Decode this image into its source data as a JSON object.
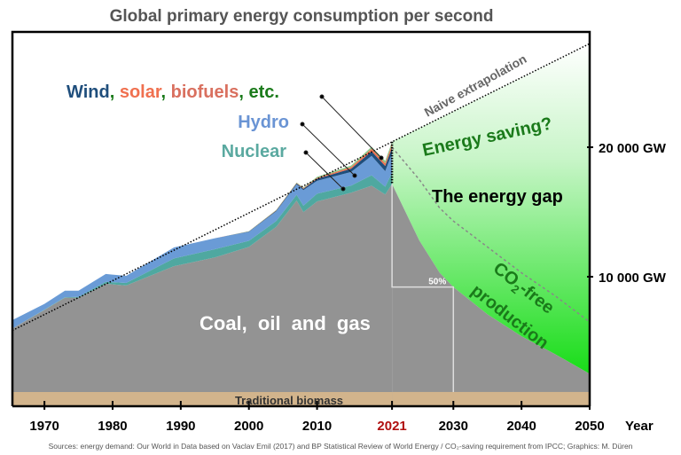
{
  "chart_data": {
    "type": "area",
    "title": "Global primary energy consumption per second",
    "xlabel": "Year",
    "ylabel": "",
    "xlim": [
      1965.3,
      2050
    ],
    "ylim": [
      0,
      28800
    ],
    "grid": false,
    "x_ticks": [
      1970,
      1980,
      1990,
      2000,
      2010,
      2021,
      2030,
      2040,
      2050
    ],
    "highlight_tick": 2021,
    "y_ticks": [
      {
        "value": 10000,
        "label": "10 000 GW"
      },
      {
        "value": 20000,
        "label": "20 000 GW"
      }
    ],
    "years": [
      1966,
      1970,
      1973,
      1975,
      1979,
      1982,
      1989,
      1995,
      2000,
      2004,
      2007,
      2008,
      2010,
      2015,
      2018,
      2020,
      2021
    ],
    "series": [
      {
        "name": "Traditional biomass",
        "color": "#d2b48c",
        "values": [
          1100,
          1100,
          1100,
          1100,
          1100,
          1100,
          1100,
          1100,
          1100,
          1100,
          1100,
          1100,
          1100,
          1100,
          1100,
          1100,
          1100
        ]
      },
      {
        "name": "Coal, oil and gas",
        "color": "#939393",
        "values": [
          4900,
          6330,
          7280,
          7280,
          8360,
          8220,
          9710,
          10390,
          11200,
          12750,
          14780,
          13890,
          14710,
          15390,
          15930,
          15250,
          16060
        ]
      },
      {
        "name": "Nuclear",
        "color": "#4fa8a0",
        "values": [
          0,
          25,
          40,
          60,
          150,
          200,
          600,
          630,
          470,
          450,
          450,
          500,
          600,
          550,
          800,
          600,
          850
        ]
      },
      {
        "name": "Hydro",
        "color": "#6a9bd6",
        "values": [
          650,
          450,
          500,
          480,
          600,
          550,
          850,
          850,
          700,
          750,
          800,
          1200,
          1000,
          1050,
          1500,
          1200,
          1500
        ]
      },
      {
        "name": "Wind",
        "color": "#1f4e7c",
        "values": [
          0,
          0,
          0,
          0,
          0,
          0,
          0,
          0,
          25,
          50,
          75,
          100,
          150,
          250,
          350,
          400,
          450
        ]
      },
      {
        "name": "solar",
        "color": "#f0704f",
        "values": [
          0,
          0,
          0,
          0,
          0,
          0,
          0,
          0,
          10,
          25,
          40,
          50,
          75,
          125,
          200,
          200,
          250
        ]
      },
      {
        "name": "biofuels, etc.",
        "color": "#8fc98a",
        "values": [
          0,
          0,
          0,
          0,
          0,
          0,
          0,
          0,
          15,
          25,
          35,
          50,
          75,
          125,
          150,
          200,
          200
        ]
      }
    ],
    "projection": {
      "years": [
        2021,
        2025,
        2028,
        2030,
        2035,
        2040,
        2045,
        2050
      ],
      "remaining_fossil_incl_biomass": [
        17160,
        12800,
        10300,
        9200,
        7100,
        5400,
        4000,
        2500
      ],
      "dashed_line": [
        20000,
        17500,
        15300,
        14300,
        12300,
        10300,
        8500,
        6500
      ]
    },
    "naive_extrapolation": {
      "years": [
        1965.3,
        2050
      ],
      "values": [
        5850,
        28000
      ]
    },
    "halving_marker": {
      "from_year": 2021,
      "to_year": 2030,
      "level": 9200,
      "label": "50%"
    },
    "annotations": {
      "coal": "Coal, oil and gas",
      "biomass": "Traditional biomass",
      "nuclear": "Nuclear",
      "hydro": "Hydro",
      "wind": "Wind",
      "solar": "solar",
      "biofuels": "biofuels",
      "etc": "etc.",
      "comma": ",",
      "naive": "Naive extrapolation",
      "saving": "Energy saving?",
      "gap": "The energy gap",
      "co2_prefix": "CO",
      "co2_sub": "2",
      "co2_suffix": "-free",
      "production": "production"
    },
    "colors": {
      "title": "#555555",
      "green_text": "#1a7a1a",
      "green_fill": "#22dd22",
      "tick_2021": "#b01010",
      "wind_label": "#1f4e7c",
      "solar_label": "#f0704f",
      "biofuels_label": "#d9705f",
      "etc_label": "#1a7a1a"
    },
    "source": "Sources: energy demand: Our World in Data based on Vaclav Emil (2017) and BP Statistical Review of World Energy / CO₂-saving requirement from IPCC; Graphics: M. Düren"
  }
}
